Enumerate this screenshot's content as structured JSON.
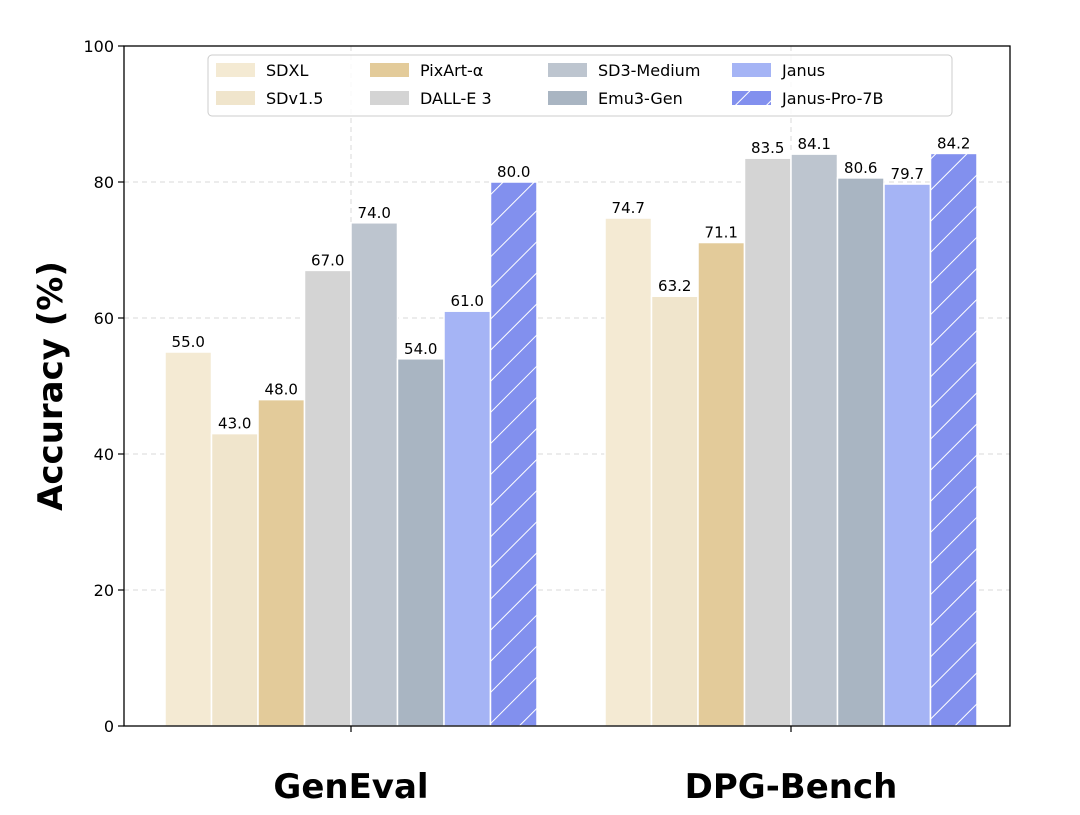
{
  "chart_data": {
    "type": "bar",
    "title": "",
    "xlabel": "",
    "ylabel": "Accuracy (%)",
    "ylim": [
      0,
      100
    ],
    "yticks": [
      0,
      20,
      40,
      60,
      80,
      100
    ],
    "grid": true,
    "legend_position": "top",
    "categories": [
      "GenEval",
      "DPG-Bench"
    ],
    "series": [
      {
        "name": "SDXL",
        "color": "#f4ead3",
        "hatch": false,
        "values": [
          55.0,
          74.7
        ],
        "labels": [
          "55.0",
          "74.7"
        ]
      },
      {
        "name": "SDv1.5",
        "color": "#f0e5cc",
        "hatch": false,
        "values": [
          43.0,
          63.2
        ],
        "labels": [
          "43.0",
          "63.2"
        ]
      },
      {
        "name": "PixArt-α",
        "color": "#e3cb9a",
        "hatch": false,
        "values": [
          48.0,
          71.1
        ],
        "labels": [
          "48.0",
          "71.1"
        ]
      },
      {
        "name": "DALL-E 3",
        "color": "#d4d4d4",
        "hatch": false,
        "values": [
          67.0,
          83.5
        ],
        "labels": [
          "67.0",
          "83.5"
        ]
      },
      {
        "name": "SD3-Medium",
        "color": "#bdc5cf",
        "hatch": false,
        "values": [
          74.0,
          84.1
        ],
        "labels": [
          "74.0",
          "84.1"
        ]
      },
      {
        "name": "Emu3-Gen",
        "color": "#a9b5c2",
        "hatch": false,
        "values": [
          54.0,
          80.6
        ],
        "labels": [
          "54.0",
          "80.6"
        ]
      },
      {
        "name": "Janus",
        "color": "#a5b4f5",
        "hatch": false,
        "values": [
          61.0,
          79.7
        ],
        "labels": [
          "61.0",
          "79.7"
        ]
      },
      {
        "name": "Janus-Pro-7B",
        "color": "#8290ee",
        "hatch": true,
        "values": [
          80.0,
          84.2
        ],
        "labels": [
          "80.0",
          "84.2"
        ]
      }
    ]
  }
}
